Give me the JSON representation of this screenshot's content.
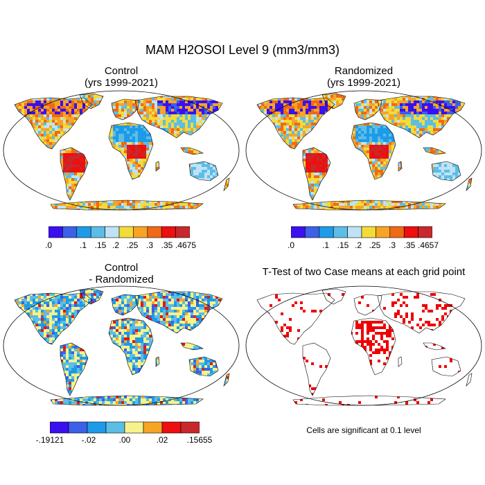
{
  "figure": {
    "title": "MAM H2OSOI Level 9 (mm3/mm3)"
  },
  "panels": [
    {
      "id": "control",
      "title_line1": "Control",
      "title_line2": "(yrs 1999-2021)",
      "colors": [
        "#3a10f0",
        "#3c60e8",
        "#1d9be8",
        "#5cbde6",
        "#bfe3f4",
        "#f3db3a",
        "#f7a425",
        "#ef6a14",
        "#ee0f0f",
        "#c8282b"
      ],
      "labels": [
        ".0",
        ".1",
        ".15",
        ".2",
        ".25",
        ".3",
        ".35",
        ".4675"
      ]
    },
    {
      "id": "randomized",
      "title_line1": "Randomized",
      "title_line2": "(yrs 1999-2021)",
      "colors": [
        "#3a10f0",
        "#3c60e8",
        "#1d9be8",
        "#5cbde6",
        "#bfe3f4",
        "#f3db3a",
        "#f7a425",
        "#ef6a14",
        "#ee0f0f",
        "#c8282b"
      ],
      "labels": [
        ".0",
        ".1",
        ".15",
        ".2",
        ".25",
        ".3",
        ".35",
        ".4657"
      ]
    },
    {
      "id": "difference",
      "title_line1": "Control",
      "title_line2": "- Randomized",
      "colors": [
        "#3a10f0",
        "#3c60e8",
        "#1d9be8",
        "#5cbde6",
        "#f7f28a",
        "#f7a425",
        "#ee0f0f",
        "#c8282b"
      ],
      "labels": [
        "-.19121",
        "-.02",
        ".00",
        ".02",
        ".15655"
      ]
    },
    {
      "id": "ttest",
      "title": "T-Test of two Case means at each grid point",
      "note": "Cells are significant at 0.1 level",
      "color": "#ee0000"
    }
  ]
}
